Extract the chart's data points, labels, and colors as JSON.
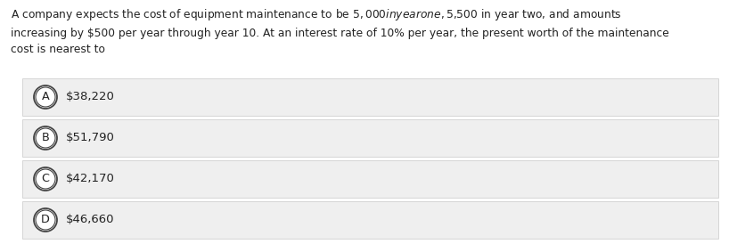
{
  "question_text": "A company expects the cost of equipment maintenance to be $5,000 in year one, $5,500 in year two, and amounts\nincreasing by $500 per year through year 10. At an interest rate of 10% per year, the present worth of the maintenance\ncost is nearest to",
  "options": [
    {
      "letter": "A",
      "text": "$38,220"
    },
    {
      "letter": "B",
      "text": "$51,790"
    },
    {
      "letter": "C",
      "text": "$42,170"
    },
    {
      "letter": "D",
      "text": "$46,660"
    }
  ],
  "background_color": "#ffffff",
  "option_bg_color": "#efefef",
  "option_border_color": "#d0d0d0",
  "circle_edge_color": "#444444",
  "circle_fill_color": "#ffffff",
  "text_color": "#222222",
  "question_fontsize": 8.8,
  "option_fontsize": 9.5,
  "letter_fontsize": 9.2
}
